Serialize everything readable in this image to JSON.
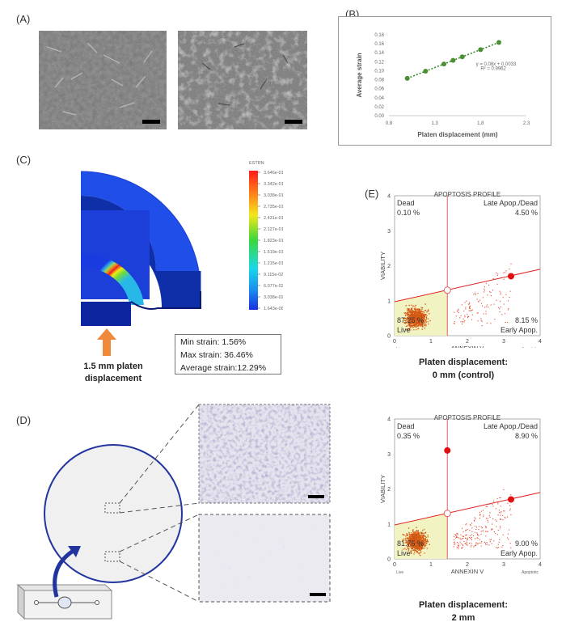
{
  "panels": {
    "a": "(A)",
    "b": "(B)",
    "c": "(C)",
    "d": "(D)",
    "e": "(E)"
  },
  "panel_b": {
    "equation": "y = 0.08x + 0.0033",
    "r2": "R² = 0.9962"
  },
  "chart_data": [
    {
      "type": "scatter",
      "title": "",
      "xlabel": "Platen displacement (mm)",
      "ylabel": "Average strain",
      "x_ticks": [
        "0.8",
        "1.3",
        "1.8",
        "2.3"
      ],
      "y_ticks": [
        "0.00",
        "0.02",
        "0.04",
        "0.06",
        "0.08",
        "0.10",
        "0.12",
        "0.14",
        "0.16",
        "0.18"
      ],
      "xlim": [
        0.8,
        2.3
      ],
      "ylim": [
        0.0,
        0.18
      ],
      "x": [
        1.0,
        1.2,
        1.4,
        1.5,
        1.6,
        1.8,
        2.0
      ],
      "y": [
        0.083,
        0.099,
        0.115,
        0.123,
        0.131,
        0.147,
        0.163
      ],
      "trendline": "dotted linear"
    }
  ],
  "panel_c": {
    "legend_title": "ESTRN",
    "legend_values": [
      "3.646e-01",
      "3.342e-01",
      "3.038e-01",
      "2.735e-01",
      "2.431e-01",
      "2.127e-01",
      "1.823e-01",
      "1.519e-01",
      "1.215e-01",
      "9.115e-02",
      "6.077e-02",
      "3.038e-02",
      "1.643e-06"
    ],
    "caption_line1": "1.5 mm platen",
    "caption_line2": "displacement",
    "min_strain": "Min strain: 1.56%",
    "max_strain": "Max strain: 36.46%",
    "avg_strain": "Average strain:12.29%"
  },
  "flow_common": {
    "title": "APOPTOSIS PROFILE",
    "ylabel": "VIABILITY",
    "xlabel": "ANNEXIN V",
    "live_axis": "Live",
    "apoptotic_axis": "Apoptotic",
    "dead_label": "Dead",
    "late_label": "Late Apop./Dead",
    "early_label": "Early Apop.",
    "live_label": "Live",
    "x_ticks": [
      "0",
      "1",
      "2",
      "3",
      "4"
    ],
    "y_ticks": [
      "0",
      "1",
      "2",
      "3",
      "4"
    ]
  },
  "flow_1": {
    "dead": "0.10 %",
    "late": "4.50 %",
    "early": "8.15 %",
    "live": "87.25 %",
    "caption_line1": "Platen displacement:",
    "caption_line2": "0 mm (control)"
  },
  "flow_2": {
    "dead": "0.35 %",
    "late": "8.90 %",
    "early": "9.00 %",
    "live": "81.75 %",
    "caption_line1": "Platen displacement:",
    "caption_line2": "2 mm"
  }
}
